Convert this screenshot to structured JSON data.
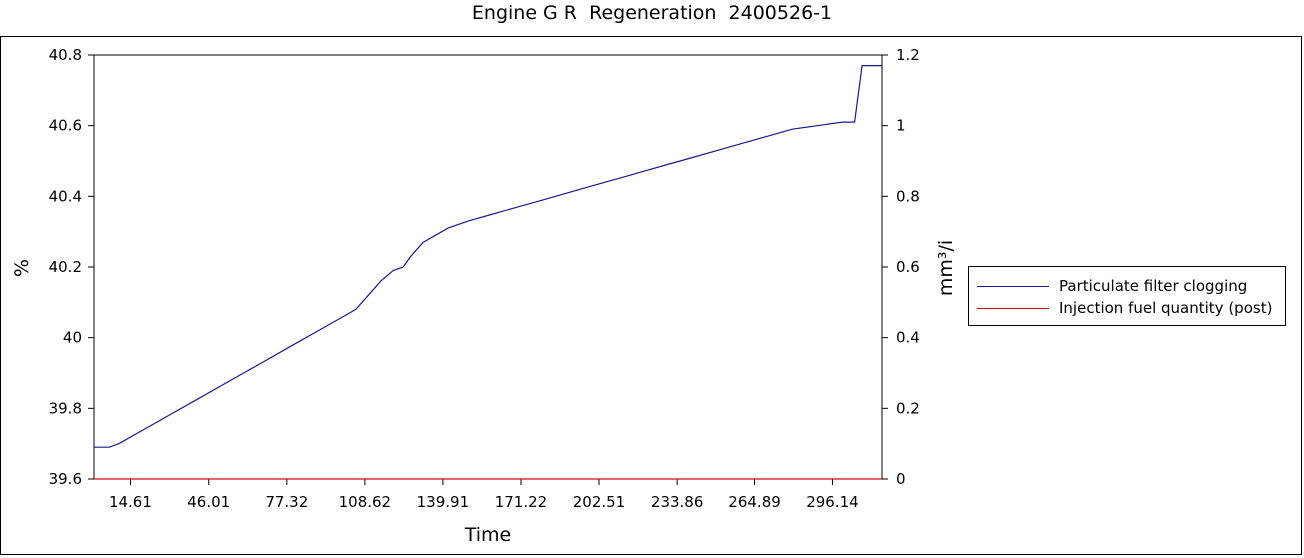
{
  "chart_data": {
    "type": "line",
    "title": "Engine G R  Regeneration  2400526-1",
    "xlabel": "Time",
    "ylabel_left": "%",
    "ylabel_right": "mm³/i",
    "xlim": [
      0,
      316
    ],
    "ylim_left": [
      39.6,
      40.8
    ],
    "ylim_right": [
      0,
      1.2
    ],
    "x_ticks": [
      "14.61",
      "46.01",
      "77.32",
      "108.62",
      "139.91",
      "171.22",
      "202.51",
      "233.86",
      "264.89",
      "296.14"
    ],
    "x_tick_values": [
      14.61,
      46.01,
      77.32,
      108.62,
      139.91,
      171.22,
      202.51,
      233.86,
      264.89,
      296.14
    ],
    "y_ticks_left": [
      "39.6",
      "39.8",
      "40",
      "40.2",
      "40.4",
      "40.6",
      "40.8"
    ],
    "y_ticks_right": [
      "0",
      "0.2",
      "0.4",
      "0.6",
      "0.8",
      "1",
      "1.2"
    ],
    "legend_position": "right",
    "grid": false,
    "series": [
      {
        "name": "Particulate filter clogging",
        "axis": "left",
        "color": "#1a1a8c",
        "x": [
          0,
          6,
          10,
          20,
          30,
          40,
          50,
          60,
          70,
          80,
          90,
          100,
          105,
          110,
          115,
          120,
          124,
          127,
          132,
          137,
          142,
          150,
          160,
          170,
          180,
          190,
          200,
          210,
          220,
          230,
          240,
          250,
          260,
          270,
          280,
          290,
          300,
          305,
          308,
          311,
          316
        ],
        "values": [
          39.69,
          39.69,
          39.7,
          39.74,
          39.78,
          39.82,
          39.86,
          39.9,
          39.94,
          39.98,
          40.02,
          40.06,
          40.08,
          40.12,
          40.16,
          40.19,
          40.2,
          40.23,
          40.27,
          40.29,
          40.31,
          40.33,
          40.35,
          40.37,
          40.39,
          40.41,
          40.43,
          40.45,
          40.47,
          40.49,
          40.51,
          40.53,
          40.55,
          40.57,
          40.59,
          40.6,
          40.61,
          40.61,
          40.77,
          40.77,
          40.77
        ]
      },
      {
        "name": "Injection fuel quantity (post)",
        "axis": "right",
        "color": "#cc1111",
        "x": [
          0,
          316
        ],
        "values": [
          0,
          0
        ]
      }
    ]
  }
}
